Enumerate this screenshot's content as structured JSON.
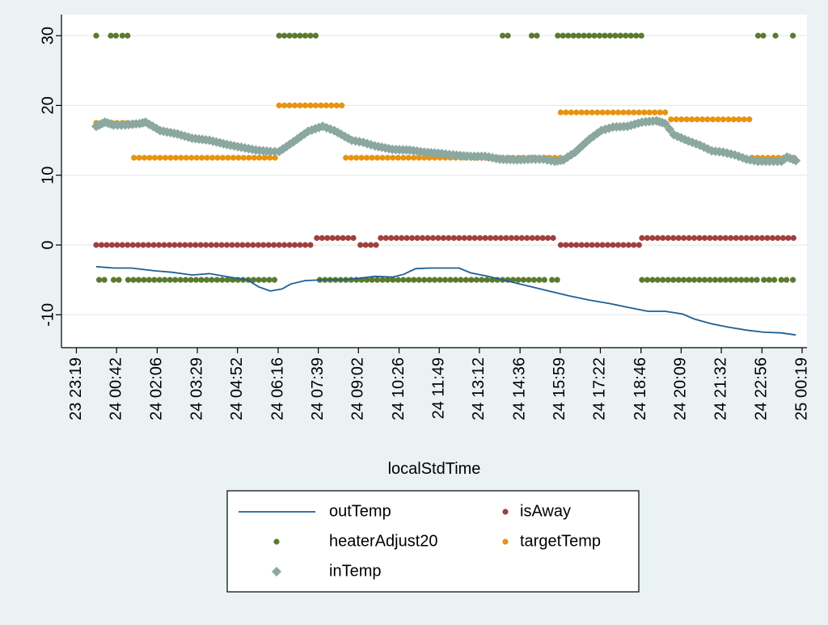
{
  "chart_data": {
    "type": "line",
    "title": "",
    "xlabel": "localStdTime",
    "ylabel": "",
    "ylim": [
      -15,
      32
    ],
    "grid": true,
    "y_ticks": [
      -10,
      0,
      10,
      20,
      30
    ],
    "y_tick_labels": [
      "-10",
      "0",
      "10",
      "20",
      "30"
    ],
    "x_ticks_hours": [
      -0.6833,
      0.7,
      2.1,
      3.4833,
      4.8667,
      6.2667,
      7.65,
      9.0333,
      10.4333,
      11.8167,
      13.2,
      14.6,
      15.9833,
      17.3667,
      18.7667,
      20.15,
      21.5333,
      22.9333,
      24.3167
    ],
    "x_tick_labels": [
      "23 23:19",
      "24 00:42",
      "24 02:06",
      "24 03:29",
      "24 04:52",
      "24 06:16",
      "24 07:39",
      "24 09:02",
      "24 10:26",
      "24 11:49",
      "24 13:12",
      "24 14:36",
      "24 15:59",
      "24 17:22",
      "24 18:46",
      "24 20:09",
      "24 21:32",
      "24 22:56",
      "25 00:19"
    ],
    "legend": {
      "position": "bottom",
      "entries": [
        {
          "label": "outTemp",
          "marker": "line",
          "color": "#1f5f95"
        },
        {
          "label": "isAway",
          "marker": "dot",
          "color": "#a0403e"
        },
        {
          "label": "heaterAdjust20",
          "marker": "dot",
          "color": "#5a7a2e"
        },
        {
          "label": "targetTemp",
          "marker": "dot",
          "color": "#e8930f"
        },
        {
          "label": "inTemp",
          "marker": "diamond",
          "color": "#8aa8a0"
        }
      ]
    },
    "series": [
      {
        "name": "outTemp",
        "kind": "line",
        "color": "#1f5f95",
        "points": [
          [
            0,
            -3.1
          ],
          [
            0.6,
            -3.3
          ],
          [
            1.2,
            -3.3
          ],
          [
            2.0,
            -3.7
          ],
          [
            2.6,
            -3.9
          ],
          [
            3.3,
            -4.3
          ],
          [
            3.9,
            -4.1
          ],
          [
            4.6,
            -4.6
          ],
          [
            5.2,
            -5.0
          ],
          [
            5.6,
            -6.0
          ],
          [
            6.0,
            -6.6
          ],
          [
            6.4,
            -6.3
          ],
          [
            6.7,
            -5.6
          ],
          [
            7.2,
            -5.1
          ],
          [
            7.8,
            -5.0
          ],
          [
            8.5,
            -5.0
          ],
          [
            9.0,
            -4.8
          ],
          [
            9.6,
            -4.5
          ],
          [
            10.2,
            -4.6
          ],
          [
            10.6,
            -4.2
          ],
          [
            11.0,
            -3.4
          ],
          [
            11.5,
            -3.3
          ],
          [
            12.0,
            -3.3
          ],
          [
            12.5,
            -3.3
          ],
          [
            12.9,
            -4.0
          ],
          [
            13.5,
            -4.5
          ],
          [
            14.2,
            -5.2
          ],
          [
            14.9,
            -5.9
          ],
          [
            15.6,
            -6.6
          ],
          [
            16.3,
            -7.3
          ],
          [
            17.0,
            -7.9
          ],
          [
            17.7,
            -8.4
          ],
          [
            18.4,
            -9.0
          ],
          [
            19.0,
            -9.5
          ],
          [
            19.6,
            -9.5
          ],
          [
            20.2,
            -9.9
          ],
          [
            20.6,
            -10.6
          ],
          [
            21.2,
            -11.3
          ],
          [
            21.8,
            -11.8
          ],
          [
            22.4,
            -12.2
          ],
          [
            23.0,
            -12.5
          ],
          [
            23.6,
            -12.6
          ],
          [
            24.1,
            -12.9
          ]
        ]
      },
      {
        "name": "isAway",
        "kind": "dots",
        "color": "#a0403e",
        "segments": [
          [
            0.0,
            7.5,
            0
          ],
          [
            7.6,
            9.0,
            1
          ],
          [
            9.1,
            9.7,
            0
          ],
          [
            9.8,
            15.9,
            1
          ],
          [
            16.0,
            18.7,
            0
          ],
          [
            18.8,
            24.1,
            1
          ]
        ]
      },
      {
        "name": "heaterAdjust20",
        "kind": "dots",
        "color": "#5a7a2e",
        "segments": [
          [
            0.0,
            0.15,
            30
          ],
          [
            0.5,
            0.7,
            30
          ],
          [
            0.9,
            1.2,
            30
          ],
          [
            6.3,
            7.6,
            30
          ],
          [
            14.0,
            14.2,
            30
          ],
          [
            15.0,
            15.2,
            30
          ],
          [
            15.9,
            18.8,
            30
          ],
          [
            22.8,
            23.0,
            30
          ],
          [
            23.4,
            23.5,
            30
          ],
          [
            24.0,
            24.1,
            30
          ],
          [
            0.1,
            0.4,
            -5
          ],
          [
            0.6,
            0.9,
            -5
          ],
          [
            1.1,
            6.3,
            -5
          ],
          [
            7.7,
            15.6,
            -5
          ],
          [
            15.7,
            16.0,
            -5
          ],
          [
            18.8,
            22.9,
            -5
          ],
          [
            23.0,
            23.5,
            -5
          ],
          [
            23.6,
            23.8,
            -5
          ],
          [
            24.0,
            24.1,
            -5
          ]
        ]
      },
      {
        "name": "targetTemp",
        "kind": "dots",
        "color": "#e8930f",
        "segments": [
          [
            0.0,
            1.3,
            17.5
          ],
          [
            1.3,
            6.3,
            12.5
          ],
          [
            6.3,
            8.5,
            20
          ],
          [
            8.6,
            16.0,
            12.5
          ],
          [
            16.0,
            19.7,
            19
          ],
          [
            19.8,
            22.5,
            18
          ],
          [
            22.6,
            24.1,
            12.5
          ]
        ]
      },
      {
        "name": "inTemp",
        "kind": "diamonds",
        "color": "#8aa8a0",
        "points": [
          [
            0,
            17.0
          ],
          [
            0.3,
            17.6
          ],
          [
            0.6,
            17.2
          ],
          [
            1.0,
            17.2
          ],
          [
            1.5,
            17.4
          ],
          [
            1.7,
            17.6
          ],
          [
            2.2,
            16.4
          ],
          [
            2.8,
            15.9
          ],
          [
            3.3,
            15.3
          ],
          [
            3.9,
            15.0
          ],
          [
            4.5,
            14.4
          ],
          [
            5.0,
            14.0
          ],
          [
            5.5,
            13.6
          ],
          [
            6.0,
            13.4
          ],
          [
            6.3,
            13.4
          ],
          [
            6.8,
            14.8
          ],
          [
            7.3,
            16.3
          ],
          [
            7.8,
            17.0
          ],
          [
            8.2,
            16.4
          ],
          [
            8.8,
            15.0
          ],
          [
            9.2,
            14.7
          ],
          [
            9.6,
            14.2
          ],
          [
            10.2,
            13.7
          ],
          [
            10.8,
            13.6
          ],
          [
            11.3,
            13.3
          ],
          [
            11.9,
            13.1
          ],
          [
            12.3,
            12.9
          ],
          [
            12.9,
            12.7
          ],
          [
            13.4,
            12.7
          ],
          [
            13.9,
            12.3
          ],
          [
            14.5,
            12.2
          ],
          [
            15.0,
            12.3
          ],
          [
            15.4,
            12.3
          ],
          [
            15.8,
            12.0
          ],
          [
            16.1,
            12.2
          ],
          [
            16.5,
            13.3
          ],
          [
            17.0,
            15.2
          ],
          [
            17.4,
            16.4
          ],
          [
            17.8,
            16.9
          ],
          [
            18.3,
            17.0
          ],
          [
            18.8,
            17.6
          ],
          [
            19.3,
            17.8
          ],
          [
            19.6,
            17.4
          ],
          [
            19.9,
            15.8
          ],
          [
            20.4,
            14.9
          ],
          [
            20.8,
            14.3
          ],
          [
            21.2,
            13.5
          ],
          [
            21.6,
            13.3
          ],
          [
            22.0,
            12.9
          ],
          [
            22.4,
            12.3
          ],
          [
            22.8,
            12.0
          ],
          [
            23.2,
            12.0
          ],
          [
            23.6,
            12.0
          ],
          [
            23.8,
            12.6
          ],
          [
            24.1,
            12.1
          ]
        ]
      }
    ]
  }
}
